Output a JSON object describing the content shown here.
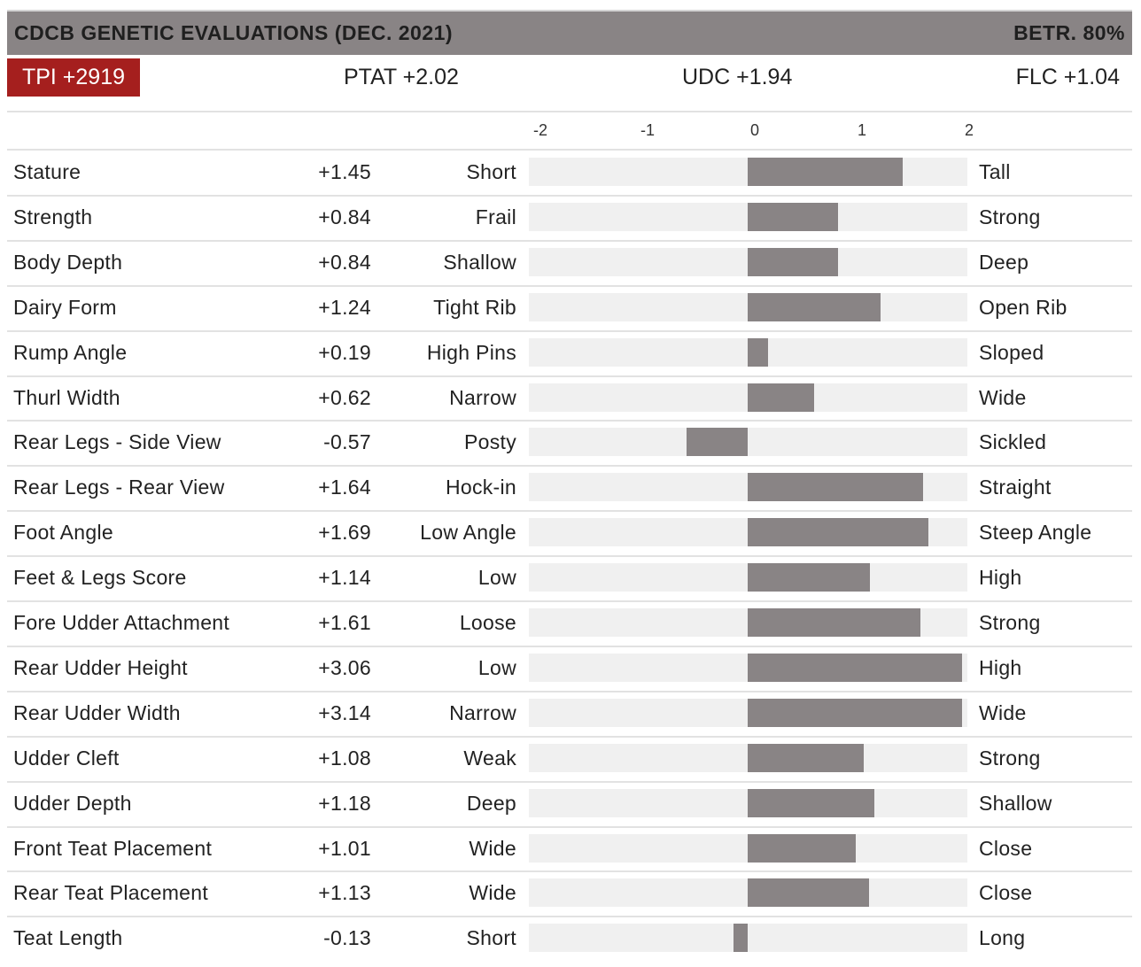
{
  "header": {
    "title": "CDCB GENETIC EVALUATIONS (DEC. 2021)",
    "reliability": "BETR. 80%"
  },
  "summary": {
    "tpi": "TPI +2919",
    "ptat": "PTAT +2.02",
    "udc": "UDC +1.94",
    "flc": "FLC +1.04"
  },
  "colors": {
    "header_bg": "#898485",
    "tpi_bg": "#a51f1e",
    "bar": "#898485",
    "track": "#f0f0f0"
  },
  "chart_data": {
    "type": "bar",
    "orientation": "horizontal",
    "xlim": [
      -2,
      2
    ],
    "ticks": [
      "-2",
      "-1",
      "0",
      "1",
      "2"
    ],
    "categories": [
      "Stature",
      "Strength",
      "Body Depth",
      "Dairy Form",
      "Rump Angle",
      "Thurl Width",
      "Rear Legs - Side View",
      "Rear Legs - Rear View",
      "Foot Angle",
      "Feet & Legs Score",
      "Fore Udder Attachment",
      "Rear Udder Height",
      "Rear Udder Width",
      "Udder Cleft",
      "Udder Depth",
      "Front Teat Placement",
      "Rear Teat Placement",
      "Teat Length"
    ],
    "values": [
      1.45,
      0.84,
      0.84,
      1.24,
      0.19,
      0.62,
      -0.57,
      1.64,
      1.69,
      1.14,
      1.61,
      3.06,
      3.14,
      1.08,
      1.18,
      1.01,
      1.13,
      -0.13
    ],
    "value_labels": [
      "+1.45",
      "+0.84",
      "+0.84",
      "+1.24",
      "+0.19",
      "+0.62",
      "-0.57",
      "+1.64",
      "+1.69",
      "+1.14",
      "+1.61",
      "+3.06",
      "+3.14",
      "+1.08",
      "+1.18",
      "+1.01",
      "+1.13",
      "-0.13"
    ],
    "low_labels": [
      "Short",
      "Frail",
      "Shallow",
      "Tight Rib",
      "High Pins",
      "Narrow",
      "Posty",
      "Hock-in",
      "Low Angle",
      "Low",
      "Loose",
      "Low",
      "Narrow",
      "Weak",
      "Deep",
      "Wide",
      "Wide",
      "Short"
    ],
    "high_labels": [
      "Tall",
      "Strong",
      "Deep",
      "Open Rib",
      "Sloped",
      "Wide",
      "Sickled",
      "Straight",
      "Steep Angle",
      "High",
      "Strong",
      "High",
      "Wide",
      "Strong",
      "Shallow",
      "Close",
      "Close",
      "Long"
    ]
  }
}
